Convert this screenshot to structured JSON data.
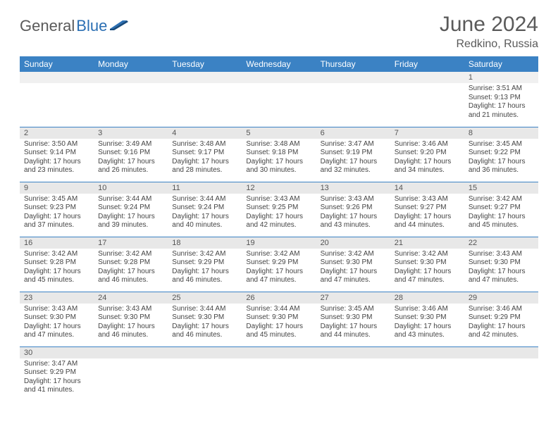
{
  "brand": {
    "general": "General",
    "blue": "Blue"
  },
  "title": "June 2024",
  "location": "Redkino, Russia",
  "colors": {
    "header_bg": "#3b82c4",
    "header_text": "#ffffff",
    "daynum_bg": "#e8e8e8",
    "border": "#3b82c4",
    "text": "#444444",
    "brand_gray": "#5a5a5a",
    "brand_blue": "#2b6fb3"
  },
  "weekday_headers": [
    "Sunday",
    "Monday",
    "Tuesday",
    "Wednesday",
    "Thursday",
    "Friday",
    "Saturday"
  ],
  "weeks": [
    [
      {
        "empty": true
      },
      {
        "empty": true
      },
      {
        "empty": true
      },
      {
        "empty": true
      },
      {
        "empty": true
      },
      {
        "empty": true
      },
      {
        "day": "1",
        "sunrise": "Sunrise: 3:51 AM",
        "sunset": "Sunset: 9:13 PM",
        "daylight1": "Daylight: 17 hours",
        "daylight2": "and 21 minutes."
      }
    ],
    [
      {
        "day": "2",
        "sunrise": "Sunrise: 3:50 AM",
        "sunset": "Sunset: 9:14 PM",
        "daylight1": "Daylight: 17 hours",
        "daylight2": "and 23 minutes."
      },
      {
        "day": "3",
        "sunrise": "Sunrise: 3:49 AM",
        "sunset": "Sunset: 9:16 PM",
        "daylight1": "Daylight: 17 hours",
        "daylight2": "and 26 minutes."
      },
      {
        "day": "4",
        "sunrise": "Sunrise: 3:48 AM",
        "sunset": "Sunset: 9:17 PM",
        "daylight1": "Daylight: 17 hours",
        "daylight2": "and 28 minutes."
      },
      {
        "day": "5",
        "sunrise": "Sunrise: 3:48 AM",
        "sunset": "Sunset: 9:18 PM",
        "daylight1": "Daylight: 17 hours",
        "daylight2": "and 30 minutes."
      },
      {
        "day": "6",
        "sunrise": "Sunrise: 3:47 AM",
        "sunset": "Sunset: 9:19 PM",
        "daylight1": "Daylight: 17 hours",
        "daylight2": "and 32 minutes."
      },
      {
        "day": "7",
        "sunrise": "Sunrise: 3:46 AM",
        "sunset": "Sunset: 9:20 PM",
        "daylight1": "Daylight: 17 hours",
        "daylight2": "and 34 minutes."
      },
      {
        "day": "8",
        "sunrise": "Sunrise: 3:45 AM",
        "sunset": "Sunset: 9:22 PM",
        "daylight1": "Daylight: 17 hours",
        "daylight2": "and 36 minutes."
      }
    ],
    [
      {
        "day": "9",
        "sunrise": "Sunrise: 3:45 AM",
        "sunset": "Sunset: 9:23 PM",
        "daylight1": "Daylight: 17 hours",
        "daylight2": "and 37 minutes."
      },
      {
        "day": "10",
        "sunrise": "Sunrise: 3:44 AM",
        "sunset": "Sunset: 9:24 PM",
        "daylight1": "Daylight: 17 hours",
        "daylight2": "and 39 minutes."
      },
      {
        "day": "11",
        "sunrise": "Sunrise: 3:44 AM",
        "sunset": "Sunset: 9:24 PM",
        "daylight1": "Daylight: 17 hours",
        "daylight2": "and 40 minutes."
      },
      {
        "day": "12",
        "sunrise": "Sunrise: 3:43 AM",
        "sunset": "Sunset: 9:25 PM",
        "daylight1": "Daylight: 17 hours",
        "daylight2": "and 42 minutes."
      },
      {
        "day": "13",
        "sunrise": "Sunrise: 3:43 AM",
        "sunset": "Sunset: 9:26 PM",
        "daylight1": "Daylight: 17 hours",
        "daylight2": "and 43 minutes."
      },
      {
        "day": "14",
        "sunrise": "Sunrise: 3:43 AM",
        "sunset": "Sunset: 9:27 PM",
        "daylight1": "Daylight: 17 hours",
        "daylight2": "and 44 minutes."
      },
      {
        "day": "15",
        "sunrise": "Sunrise: 3:42 AM",
        "sunset": "Sunset: 9:27 PM",
        "daylight1": "Daylight: 17 hours",
        "daylight2": "and 45 minutes."
      }
    ],
    [
      {
        "day": "16",
        "sunrise": "Sunrise: 3:42 AM",
        "sunset": "Sunset: 9:28 PM",
        "daylight1": "Daylight: 17 hours",
        "daylight2": "and 45 minutes."
      },
      {
        "day": "17",
        "sunrise": "Sunrise: 3:42 AM",
        "sunset": "Sunset: 9:28 PM",
        "daylight1": "Daylight: 17 hours",
        "daylight2": "and 46 minutes."
      },
      {
        "day": "18",
        "sunrise": "Sunrise: 3:42 AM",
        "sunset": "Sunset: 9:29 PM",
        "daylight1": "Daylight: 17 hours",
        "daylight2": "and 46 minutes."
      },
      {
        "day": "19",
        "sunrise": "Sunrise: 3:42 AM",
        "sunset": "Sunset: 9:29 PM",
        "daylight1": "Daylight: 17 hours",
        "daylight2": "and 47 minutes."
      },
      {
        "day": "20",
        "sunrise": "Sunrise: 3:42 AM",
        "sunset": "Sunset: 9:30 PM",
        "daylight1": "Daylight: 17 hours",
        "daylight2": "and 47 minutes."
      },
      {
        "day": "21",
        "sunrise": "Sunrise: 3:42 AM",
        "sunset": "Sunset: 9:30 PM",
        "daylight1": "Daylight: 17 hours",
        "daylight2": "and 47 minutes."
      },
      {
        "day": "22",
        "sunrise": "Sunrise: 3:43 AM",
        "sunset": "Sunset: 9:30 PM",
        "daylight1": "Daylight: 17 hours",
        "daylight2": "and 47 minutes."
      }
    ],
    [
      {
        "day": "23",
        "sunrise": "Sunrise: 3:43 AM",
        "sunset": "Sunset: 9:30 PM",
        "daylight1": "Daylight: 17 hours",
        "daylight2": "and 47 minutes."
      },
      {
        "day": "24",
        "sunrise": "Sunrise: 3:43 AM",
        "sunset": "Sunset: 9:30 PM",
        "daylight1": "Daylight: 17 hours",
        "daylight2": "and 46 minutes."
      },
      {
        "day": "25",
        "sunrise": "Sunrise: 3:44 AM",
        "sunset": "Sunset: 9:30 PM",
        "daylight1": "Daylight: 17 hours",
        "daylight2": "and 46 minutes."
      },
      {
        "day": "26",
        "sunrise": "Sunrise: 3:44 AM",
        "sunset": "Sunset: 9:30 PM",
        "daylight1": "Daylight: 17 hours",
        "daylight2": "and 45 minutes."
      },
      {
        "day": "27",
        "sunrise": "Sunrise: 3:45 AM",
        "sunset": "Sunset: 9:30 PM",
        "daylight1": "Daylight: 17 hours",
        "daylight2": "and 44 minutes."
      },
      {
        "day": "28",
        "sunrise": "Sunrise: 3:46 AM",
        "sunset": "Sunset: 9:30 PM",
        "daylight1": "Daylight: 17 hours",
        "daylight2": "and 43 minutes."
      },
      {
        "day": "29",
        "sunrise": "Sunrise: 3:46 AM",
        "sunset": "Sunset: 9:29 PM",
        "daylight1": "Daylight: 17 hours",
        "daylight2": "and 42 minutes."
      }
    ],
    [
      {
        "day": "30",
        "sunrise": "Sunrise: 3:47 AM",
        "sunset": "Sunset: 9:29 PM",
        "daylight1": "Daylight: 17 hours",
        "daylight2": "and 41 minutes."
      },
      {
        "empty": true
      },
      {
        "empty": true
      },
      {
        "empty": true
      },
      {
        "empty": true
      },
      {
        "empty": true
      },
      {
        "empty": true
      }
    ]
  ]
}
